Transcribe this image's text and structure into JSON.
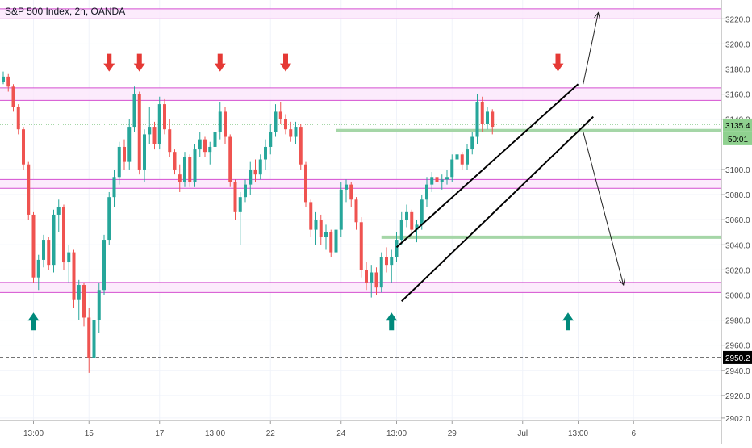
{
  "header": {
    "symbol_title": "S&P 500 Index, 2h, OANDA"
  },
  "colors": {
    "up": "#26a69a",
    "down": "#ef5350",
    "zone_line": "#d44fd0",
    "zone_fill": "#fbe6fb",
    "support_green": "#a5d6a7",
    "arrow_down": "#e53935",
    "arrow_up": "#00897b",
    "price_tag_bg": "#8fd18f",
    "dashed_tag_bg": "#000000",
    "dotted_price": "#4caf50"
  },
  "chart_data": {
    "type": "candlestick",
    "title": "S&P 500 Index, 2h, OANDA",
    "ylim": [
      2900,
      3235
    ],
    "y_ticks": [
      {
        "value": 3220,
        "label": "3220.0"
      },
      {
        "value": 3200,
        "label": "3200.0"
      },
      {
        "value": 3180,
        "label": "3180.0"
      },
      {
        "value": 3160,
        "label": "3160.0"
      },
      {
        "value": 3140,
        "label": "3140.0"
      },
      {
        "value": 3100,
        "label": "3100.0"
      },
      {
        "value": 3080,
        "label": "3080.0"
      },
      {
        "value": 3060,
        "label": "3060.0"
      },
      {
        "value": 3040,
        "label": "3040.0"
      },
      {
        "value": 3020,
        "label": "3020.0"
      },
      {
        "value": 3000,
        "label": "3000.0"
      },
      {
        "value": 2980,
        "label": "2980.0"
      },
      {
        "value": 2960,
        "label": "2960.0"
      },
      {
        "value": 2940,
        "label": "2940.0"
      },
      {
        "value": 2920,
        "label": "2920.0"
      },
      {
        "value": 2902,
        "label": "2902.0"
      }
    ],
    "x_ticks": [
      {
        "bar": 6,
        "label": "13:00"
      },
      {
        "bar": 17,
        "label": "15"
      },
      {
        "bar": 31,
        "label": "17"
      },
      {
        "bar": 42,
        "label": "13:00"
      },
      {
        "bar": 53,
        "label": "22"
      },
      {
        "bar": 67,
        "label": "24"
      },
      {
        "bar": 78,
        "label": "13:00"
      },
      {
        "bar": 89,
        "label": "29"
      },
      {
        "bar": 103,
        "label": "Jul"
      },
      {
        "bar": 114,
        "label": "13:00"
      },
      {
        "bar": 125,
        "label": "6"
      }
    ],
    "candles": [
      [
        3170,
        3178,
        3168,
        3174
      ],
      [
        3174,
        3176,
        3162,
        3166
      ],
      [
        3166,
        3168,
        3146,
        3150
      ],
      [
        3150,
        3152,
        3128,
        3132
      ],
      [
        3132,
        3134,
        3100,
        3104
      ],
      [
        3104,
        3106,
        3060,
        3064
      ],
      [
        3064,
        3066,
        3010,
        3014
      ],
      [
        3014,
        3032,
        3004,
        3028
      ],
      [
        3028,
        3048,
        3022,
        3044
      ],
      [
        3044,
        3046,
        3020,
        3024
      ],
      [
        3024,
        3068,
        3018,
        3064
      ],
      [
        3064,
        3076,
        3050,
        3070
      ],
      [
        3070,
        3072,
        3020,
        3026
      ],
      [
        3026,
        3040,
        3010,
        3034
      ],
      [
        3034,
        3036,
        2990,
        2996
      ],
      [
        2996,
        3012,
        2980,
        3008
      ],
      [
        3008,
        3010,
        2975,
        2982
      ],
      [
        2982,
        2990,
        2938,
        2950
      ],
      [
        2950,
        2986,
        2946,
        2980
      ],
      [
        2980,
        3010,
        2970,
        3004
      ],
      [
        3004,
        3048,
        3000,
        3044
      ],
      [
        3044,
        3082,
        3040,
        3078
      ],
      [
        3078,
        3100,
        3070,
        3094
      ],
      [
        3094,
        3122,
        3088,
        3118
      ],
      [
        3118,
        3124,
        3100,
        3106
      ],
      [
        3106,
        3140,
        3100,
        3134
      ],
      [
        3134,
        3166,
        3130,
        3160
      ],
      [
        3160,
        3162,
        3096,
        3100
      ],
      [
        3100,
        3132,
        3090,
        3128
      ],
      [
        3128,
        3150,
        3120,
        3134
      ],
      [
        3134,
        3138,
        3116,
        3120
      ],
      [
        3120,
        3158,
        3116,
        3152
      ],
      [
        3152,
        3156,
        3128,
        3132
      ],
      [
        3132,
        3140,
        3110,
        3114
      ],
      [
        3114,
        3116,
        3096,
        3100
      ],
      [
        3096,
        3104,
        3082,
        3090
      ],
      [
        3090,
        3114,
        3086,
        3110
      ],
      [
        3110,
        3112,
        3086,
        3090
      ],
      [
        3090,
        3120,
        3086,
        3116
      ],
      [
        3116,
        3130,
        3110,
        3124
      ],
      [
        3124,
        3126,
        3110,
        3114
      ],
      [
        3114,
        3122,
        3104,
        3118
      ],
      [
        3118,
        3136,
        3112,
        3130
      ],
      [
        3130,
        3154,
        3124,
        3146
      ],
      [
        3146,
        3150,
        3120,
        3126
      ],
      [
        3126,
        3128,
        3086,
        3090
      ],
      [
        3090,
        3092,
        3060,
        3066
      ],
      [
        3066,
        3082,
        3040,
        3078
      ],
      [
        3078,
        3092,
        3074,
        3088
      ],
      [
        3088,
        3106,
        3080,
        3100
      ],
      [
        3100,
        3108,
        3090,
        3096
      ],
      [
        3096,
        3112,
        3092,
        3108
      ],
      [
        3108,
        3124,
        3100,
        3118
      ],
      [
        3118,
        3136,
        3112,
        3130
      ],
      [
        3130,
        3152,
        3126,
        3146
      ],
      [
        3146,
        3154,
        3136,
        3140
      ],
      [
        3140,
        3144,
        3128,
        3132
      ],
      [
        3132,
        3138,
        3122,
        3126
      ],
      [
        3126,
        3138,
        3120,
        3134
      ],
      [
        3134,
        3136,
        3100,
        3104
      ],
      [
        3104,
        3106,
        3070,
        3074
      ],
      [
        3074,
        3076,
        3046,
        3052
      ],
      [
        3052,
        3066,
        3040,
        3060
      ],
      [
        3060,
        3064,
        3040,
        3046
      ],
      [
        3046,
        3056,
        3036,
        3050
      ],
      [
        3050,
        3052,
        3030,
        3034
      ],
      [
        3034,
        3056,
        3030,
        3052
      ],
      [
        3052,
        3090,
        3046,
        3084
      ],
      [
        3084,
        3092,
        3074,
        3088
      ],
      [
        3088,
        3090,
        3070,
        3076
      ],
      [
        3076,
        3078,
        3052,
        3058
      ],
      [
        3058,
        3062,
        3014,
        3020
      ],
      [
        3020,
        3026,
        3004,
        3010
      ],
      [
        3010,
        3024,
        2998,
        3018
      ],
      [
        3018,
        3022,
        3000,
        3006
      ],
      [
        3006,
        3034,
        3002,
        3030
      ],
      [
        3030,
        3038,
        3018,
        3024
      ],
      [
        3024,
        3036,
        3010,
        3030
      ],
      [
        3030,
        3050,
        3026,
        3044
      ],
      [
        3044,
        3066,
        3040,
        3060
      ],
      [
        3060,
        3072,
        3054,
        3066
      ],
      [
        3066,
        3068,
        3048,
        3052
      ],
      [
        3052,
        3060,
        3042,
        3056
      ],
      [
        3056,
        3080,
        3052,
        3076
      ],
      [
        3076,
        3094,
        3070,
        3088
      ],
      [
        3088,
        3098,
        3082,
        3094
      ],
      [
        3094,
        3096,
        3086,
        3090
      ],
      [
        3090,
        3096,
        3084,
        3092
      ],
      [
        3092,
        3100,
        3088,
        3094
      ],
      [
        3094,
        3112,
        3090,
        3108
      ],
      [
        3108,
        3118,
        3100,
        3112
      ],
      [
        3112,
        3114,
        3100,
        3104
      ],
      [
        3104,
        3120,
        3100,
        3116
      ],
      [
        3116,
        3130,
        3112,
        3126
      ],
      [
        3126,
        3160,
        3120,
        3154
      ],
      [
        3154,
        3158,
        3130,
        3136
      ],
      [
        3136,
        3150,
        3132,
        3146
      ],
      [
        3146,
        3148,
        3128,
        3134
      ]
    ],
    "zones": [
      {
        "top": 3228,
        "bottom": 3220
      },
      {
        "top": 3165,
        "bottom": 3155
      },
      {
        "top": 3092,
        "bottom": 3085
      },
      {
        "top": 3010,
        "bottom": 3002
      }
    ],
    "support_lines": [
      {
        "value": 3131,
        "from_bar": 66
      },
      {
        "value": 3046,
        "from_bar": 75
      }
    ],
    "dotted_price_line": 3136,
    "dashed_line": {
      "value": 2950.2,
      "label": "2950.2"
    },
    "price_tag": {
      "value": 3135.4,
      "label": "3135.4",
      "countdown": "50:01"
    },
    "channel": [
      {
        "x1": 78,
        "y1": 3038,
        "x2": 114,
        "y2": 3168
      },
      {
        "x1": 79,
        "y1": 2995,
        "x2": 117,
        "y2": 3142
      }
    ],
    "forecast_arrows": [
      {
        "x1": 115,
        "y1": 3168,
        "x2": 118,
        "y2": 3225
      },
      {
        "x1": 115,
        "y1": 3130,
        "x2": 123,
        "y2": 3008
      }
    ],
    "signal_arrows": [
      {
        "dir": "down",
        "bar": 21,
        "value": 3178
      },
      {
        "dir": "down",
        "bar": 27,
        "value": 3178
      },
      {
        "dir": "down",
        "bar": 43,
        "value": 3178
      },
      {
        "dir": "down",
        "bar": 56,
        "value": 3178
      },
      {
        "dir": "down",
        "bar": 110,
        "value": 3178
      },
      {
        "dir": "up",
        "bar": 6,
        "value": 2986
      },
      {
        "dir": "up",
        "bar": 77,
        "value": 2986
      },
      {
        "dir": "up",
        "bar": 112,
        "value": 2986
      }
    ]
  }
}
